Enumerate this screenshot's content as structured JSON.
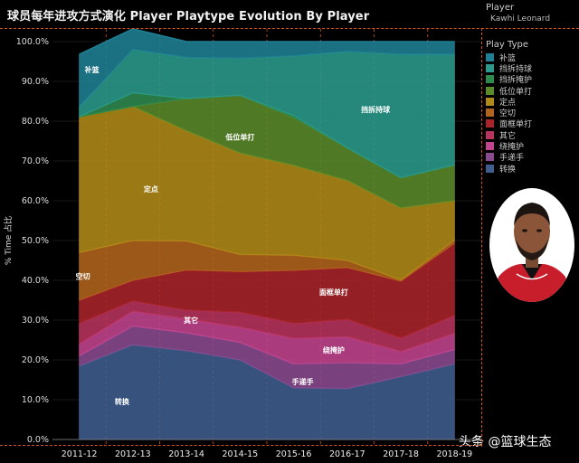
{
  "title": "球员每年进攻方式演化 Player Playtype Evolution By Player",
  "player_filter": {
    "header": "Player",
    "value": "Kawhi Leonard"
  },
  "legend_header": "Play Type",
  "watermark": "头条 @篮球生态",
  "colors": {
    "补篮": "#1f7f93",
    "挡拆持球": "#2b9a8c",
    "挡拆掩护": "#2d8a4e",
    "低位单打": "#5a8a2a",
    "定点": "#b08a18",
    "空切": "#b0641c",
    "面框单打": "#a8242a",
    "其它": "#b8335e",
    "绕掩护": "#c2448e",
    "手递手": "#8a4a8e",
    "转换": "#3f5e8e"
  },
  "chart_data": {
    "type": "area",
    "stacked": true,
    "title": "球员每年进攻方式演化 Player Playtype Evolution By Player",
    "xlabel": "",
    "ylabel": "% Time 占比",
    "ylim": [
      0,
      100
    ],
    "yticks": [
      "0.0%",
      "10.0%",
      "20.0%",
      "30.0%",
      "40.0%",
      "50.0%",
      "60.0%",
      "70.0%",
      "80.0%",
      "90.0%",
      "100.0%"
    ],
    "categories": [
      "2011-12",
      "2012-13",
      "2013-14",
      "2014-15",
      "2015-16",
      "2016-17",
      "2017-18",
      "2018-19"
    ],
    "series": [
      {
        "name": "转换",
        "values": [
          18.5,
          23.8,
          22.3,
          20.0,
          13.0,
          12.8,
          15.8,
          19.0
        ]
      },
      {
        "name": "手递手",
        "values": [
          2.5,
          4.7,
          4.5,
          4.4,
          6.0,
          6.5,
          3.2,
          3.6
        ]
      },
      {
        "name": "绕掩护",
        "values": [
          3.0,
          3.7,
          3.5,
          3.8,
          6.4,
          6.5,
          3.1,
          4.0
        ]
      },
      {
        "name": "其它",
        "values": [
          5.2,
          2.6,
          2.2,
          3.8,
          3.8,
          4.4,
          3.4,
          4.6
        ]
      },
      {
        "name": "面框单打",
        "values": [
          5.8,
          5.2,
          10.1,
          10.2,
          13.3,
          13.0,
          14.3,
          18.1
        ]
      },
      {
        "name": "空切",
        "values": [
          12.0,
          10.0,
          7.3,
          4.3,
          3.8,
          1.8,
          0.3,
          0.8
        ]
      },
      {
        "name": "定点",
        "values": [
          34.1,
          33.7,
          27.7,
          25.5,
          22.6,
          20.1,
          18.1,
          9.9
        ]
      },
      {
        "name": "低位单打",
        "values": [
          0.0,
          0.0,
          8.1,
          14.5,
          12.0,
          8.2,
          7.6,
          9.0
        ]
      },
      {
        "name": "挡拆掩护",
        "values": [
          0.0,
          3.4,
          0.0,
          0.0,
          0.5,
          0.0,
          0.0,
          0.0
        ]
      },
      {
        "name": "挡拆持球",
        "values": [
          2.5,
          10.9,
          10.3,
          9.3,
          15.0,
          24.2,
          31.0,
          27.8
        ]
      },
      {
        "name": "补篮",
        "values": [
          13.2,
          5.2,
          4.0,
          4.2,
          3.6,
          2.5,
          3.2,
          3.2
        ]
      }
    ],
    "annotations": [
      {
        "text": "补篮",
        "x": "2011-12",
        "y": 93
      },
      {
        "text": "定点",
        "x": "2012-13",
        "y": 63
      },
      {
        "text": "空切",
        "x": "2011-12",
        "y": 41
      },
      {
        "text": "低位单打",
        "x": "2014-15",
        "y": 76
      },
      {
        "text": "挡拆持球",
        "x": "2017-18",
        "y": 83
      },
      {
        "text": "其它",
        "x": "2013-14",
        "y": 30
      },
      {
        "text": "面框单打",
        "x": "2016-17",
        "y": 37
      },
      {
        "text": "绕掩护",
        "x": "2016-17",
        "y": 22.5
      },
      {
        "text": "手递手",
        "x": "2015-16",
        "y": 14.5
      },
      {
        "text": "转换",
        "x": "2012-13",
        "y": 9.5
      }
    ]
  }
}
